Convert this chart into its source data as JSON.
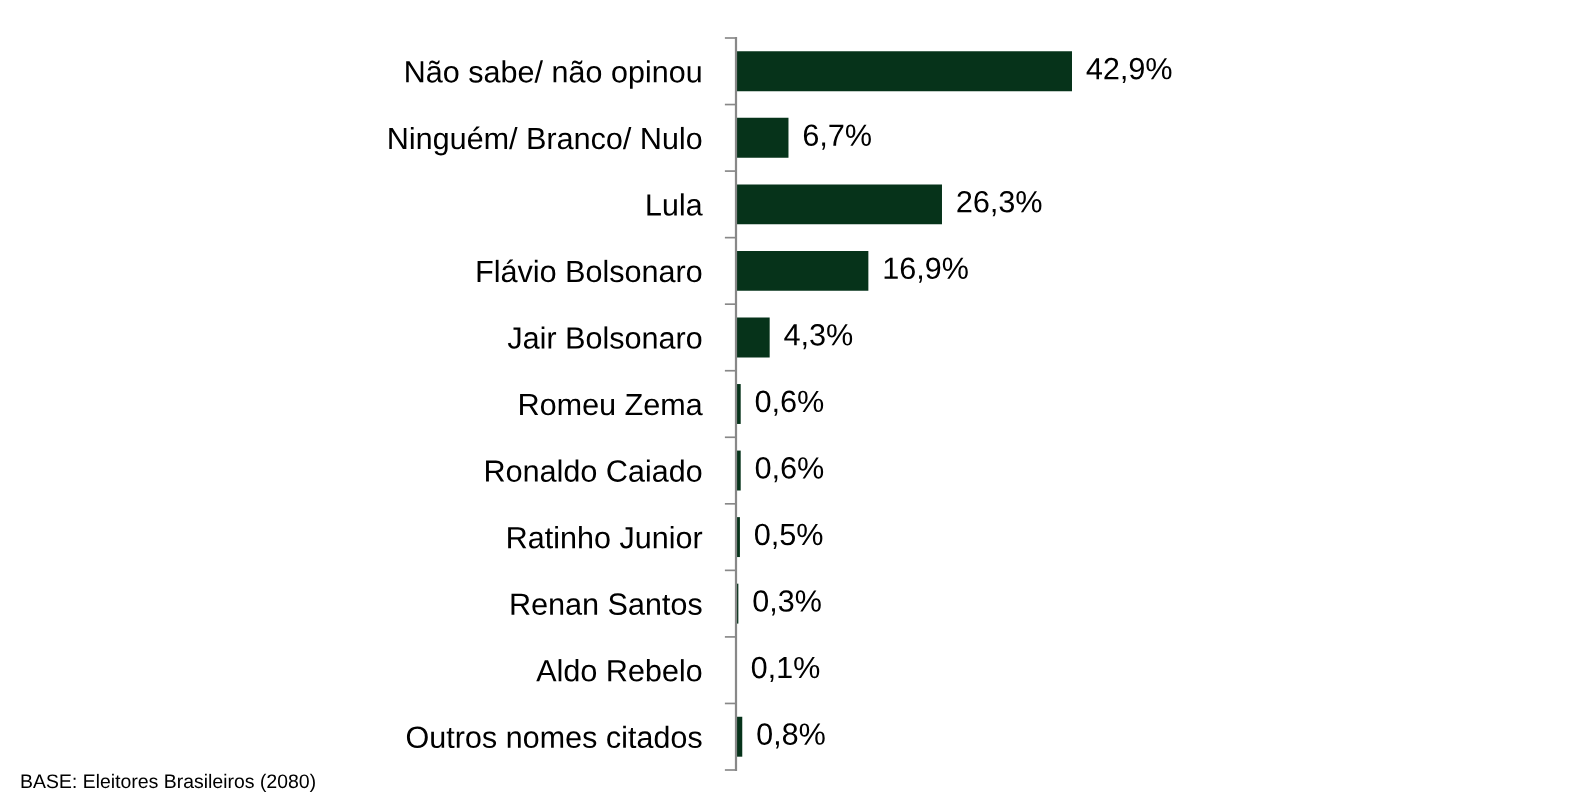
{
  "chart_data": {
    "type": "bar",
    "orientation": "horizontal",
    "categories": [
      "Não sabe/ não opinou",
      "Ninguém/ Branco/ Nulo",
      "Lula",
      "Flávio Bolsonaro",
      "Jair Bolsonaro",
      "Romeu Zema",
      "Ronaldo Caiado",
      "Ratinho Junior",
      "Renan Santos",
      "Aldo Rebelo",
      "Outros nomes citados"
    ],
    "values": [
      42.9,
      6.7,
      26.3,
      16.9,
      4.3,
      0.6,
      0.6,
      0.5,
      0.3,
      0.1,
      0.8
    ],
    "value_labels": [
      "42,9%",
      "6,7%",
      "26,3%",
      "16,9%",
      "4,3%",
      "0,6%",
      "0,6%",
      "0,5%",
      "0,3%",
      "0,1%",
      "0,8%"
    ],
    "color": "#06331a",
    "grid": false,
    "legend": false,
    "annotations": [
      "BASE: Eleitores Brasileiros (2080)"
    ]
  }
}
